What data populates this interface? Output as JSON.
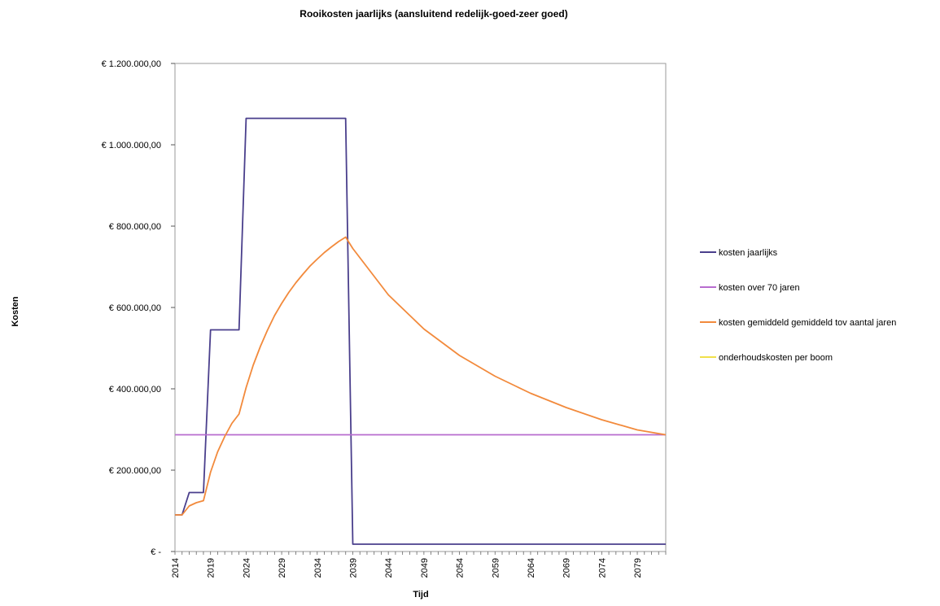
{
  "chart_data": {
    "type": "line",
    "title": "Rooikosten jaarlijks (aansluitend redelijk-goed-zeer goed)",
    "xlabel": "Tijd",
    "ylabel": "Kosten",
    "xlim": [
      2014,
      2083
    ],
    "ylim": [
      0,
      1200000
    ],
    "y_ticks": [
      {
        "value": 0,
        "label": "€ -"
      },
      {
        "value": 200000,
        "label": "€ 200.000,00"
      },
      {
        "value": 400000,
        "label": "€ 400.000,00"
      },
      {
        "value": 600000,
        "label": "€ 600.000,00"
      },
      {
        "value": 800000,
        "label": "€ 800.000,00"
      },
      {
        "value": 1000000,
        "label": "€ 1.000.000,00"
      },
      {
        "value": 1200000,
        "label": "€ 1.200.000,00"
      }
    ],
    "x_ticks": [
      {
        "value": 2014,
        "label": "2014"
      },
      {
        "value": 2019,
        "label": "2019"
      },
      {
        "value": 2024,
        "label": "2024"
      },
      {
        "value": 2029,
        "label": "2029"
      },
      {
        "value": 2034,
        "label": "2034"
      },
      {
        "value": 2039,
        "label": "2039"
      },
      {
        "value": 2044,
        "label": "2044"
      },
      {
        "value": 2049,
        "label": "2049"
      },
      {
        "value": 2054,
        "label": "2054"
      },
      {
        "value": 2059,
        "label": "2059"
      },
      {
        "value": 2064,
        "label": "2064"
      },
      {
        "value": 2069,
        "label": "2069"
      },
      {
        "value": 2074,
        "label": "2074"
      },
      {
        "value": 2079,
        "label": "2079"
      }
    ],
    "grid": false,
    "legend_position": "right",
    "series": [
      {
        "name": "kosten jaarlijks",
        "color": "#4a3f8c",
        "points": [
          [
            2014,
            90000
          ],
          [
            2015,
            90000
          ],
          [
            2016,
            145000
          ],
          [
            2017,
            145000
          ],
          [
            2018,
            145000
          ],
          [
            2019,
            545000
          ],
          [
            2020,
            545000
          ],
          [
            2021,
            545000
          ],
          [
            2022,
            545000
          ],
          [
            2023,
            545000
          ],
          [
            2024,
            1065000
          ],
          [
            2025,
            1065000
          ],
          [
            2026,
            1065000
          ],
          [
            2027,
            1065000
          ],
          [
            2028,
            1065000
          ],
          [
            2029,
            1065000
          ],
          [
            2030,
            1065000
          ],
          [
            2031,
            1065000
          ],
          [
            2032,
            1065000
          ],
          [
            2033,
            1065000
          ],
          [
            2034,
            1065000
          ],
          [
            2035,
            1065000
          ],
          [
            2036,
            1065000
          ],
          [
            2037,
            1065000
          ],
          [
            2038,
            1065000
          ],
          [
            2039,
            18000
          ],
          [
            2083,
            18000
          ]
        ]
      },
      {
        "name": "kosten over 70 jaren",
        "color": "#b86ccf",
        "points": [
          [
            2014,
            287000
          ],
          [
            2083,
            287000
          ]
        ]
      },
      {
        "name": "kosten gemiddeld gemiddeld tov aantal jaren",
        "color": "#f28a3c",
        "points": [
          [
            2014,
            90000
          ],
          [
            2015,
            90000
          ],
          [
            2016,
            112000
          ],
          [
            2017,
            120000
          ],
          [
            2018,
            125000
          ],
          [
            2019,
            195000
          ],
          [
            2020,
            245000
          ],
          [
            2021,
            283000
          ],
          [
            2022,
            315000
          ],
          [
            2023,
            338000
          ],
          [
            2024,
            403000
          ],
          [
            2025,
            458000
          ],
          [
            2026,
            504000
          ],
          [
            2027,
            544000
          ],
          [
            2028,
            580000
          ],
          [
            2029,
            610000
          ],
          [
            2030,
            637000
          ],
          [
            2031,
            661000
          ],
          [
            2032,
            682000
          ],
          [
            2033,
            702000
          ],
          [
            2034,
            719000
          ],
          [
            2035,
            735000
          ],
          [
            2036,
            749000
          ],
          [
            2037,
            762000
          ],
          [
            2038,
            773000
          ],
          [
            2039,
            745000
          ],
          [
            2044,
            631000
          ],
          [
            2049,
            547000
          ],
          [
            2054,
            482000
          ],
          [
            2059,
            431000
          ],
          [
            2064,
            389000
          ],
          [
            2069,
            354000
          ],
          [
            2074,
            324000
          ],
          [
            2079,
            299000
          ],
          [
            2083,
            287000
          ]
        ]
      },
      {
        "name": "onderhoudskosten per boom",
        "color": "#f0e04a",
        "points": []
      }
    ]
  }
}
